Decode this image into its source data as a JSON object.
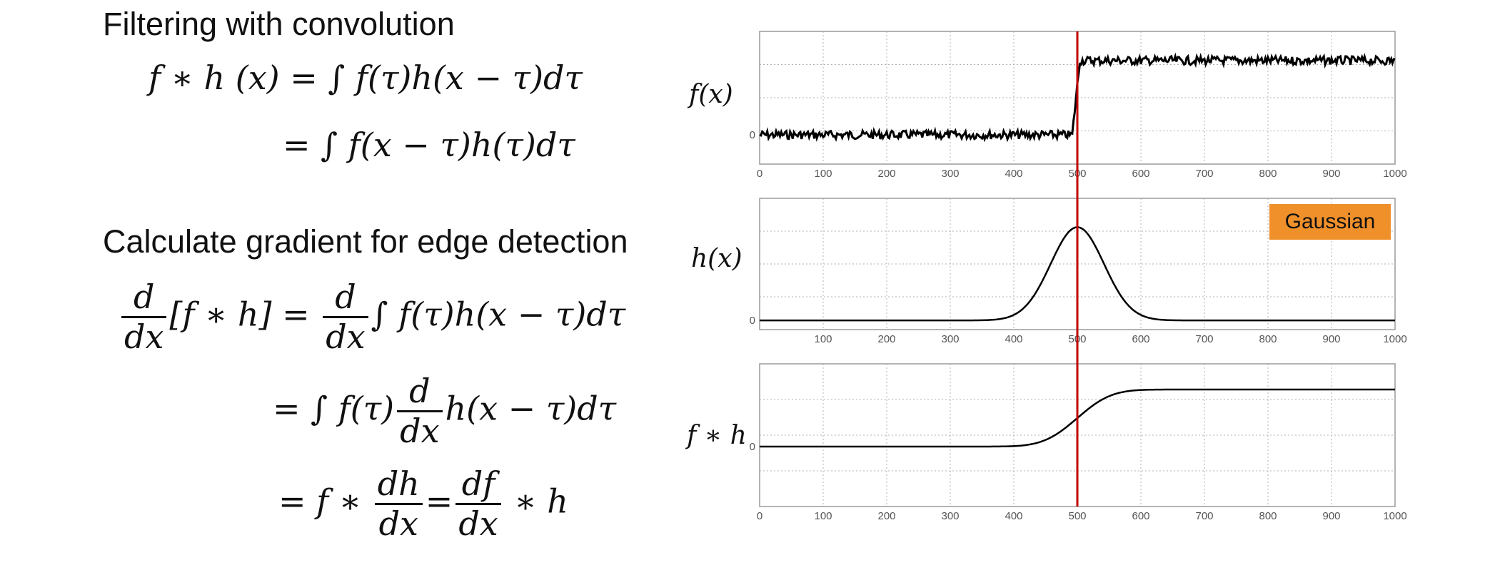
{
  "headings": {
    "conv": "Filtering with convolution",
    "grad": "Calculate gradient for edge detection"
  },
  "conv_eq": {
    "line1_lhs": "f ∗ h (x) = ",
    "integral": "∫",
    "line1_rhs": " f(τ)h(x − τ)dτ",
    "line2_eq": "= ",
    "line2_rhs": " f(x − τ)h(τ)dτ"
  },
  "grad_eq": {
    "d": "d",
    "dx": "dx",
    "bracket": "[f ∗ h] = ",
    "line1_rhs": " f(τ)h(x − τ)dτ",
    "eq": "= ",
    "integral": "∫",
    "f_tau": " f(τ)",
    "line2_tail": "h(x − τ)dτ",
    "f_star": "f ∗ ",
    "dh": "dh",
    "equals": "=",
    "df": "df",
    "star_h": " ∗ h"
  },
  "plot_labels": {
    "f": "f(x)",
    "h": "h(x)",
    "fh": "f ∗ h",
    "gaussian": "Gaussian"
  },
  "chart_data": [
    {
      "type": "line",
      "name": "f(x)",
      "x_ticks": [
        "0",
        "100",
        "200",
        "300",
        "400",
        "500",
        "600",
        "700",
        "800",
        "900",
        "1000"
      ],
      "y_ticks": [
        "0"
      ],
      "xlim": [
        0,
        1000
      ],
      "grid": true,
      "description_values": {
        "low_level": 0,
        "high_level": 2,
        "step_at": 500,
        "noise": "small"
      },
      "x": [
        0,
        490,
        500,
        505,
        1000
      ],
      "y": [
        0,
        0,
        0.6,
        2,
        2
      ]
    },
    {
      "type": "line",
      "name": "h(x)",
      "x_ticks": [
        "100",
        "200",
        "300",
        "400",
        "500",
        "600",
        "700",
        "800",
        "900",
        "1000"
      ],
      "y_ticks": [
        "0"
      ],
      "xlim": [
        0,
        1000
      ],
      "grid": true,
      "gaussian": {
        "mean": 500,
        "sigma": 42,
        "peak": 2.6
      },
      "legend": "Gaussian"
    },
    {
      "type": "line",
      "name": "f ∗ h",
      "x_ticks": [
        "0",
        "100",
        "200",
        "300",
        "400",
        "500",
        "600",
        "700",
        "800",
        "900",
        "1000"
      ],
      "y_ticks": [
        "0"
      ],
      "xlim": [
        0,
        1000
      ],
      "grid": true,
      "sigmoid": {
        "center": 500,
        "low": 0,
        "high": 2.2,
        "sigma": 42
      }
    }
  ],
  "colors": {
    "marker_line": "#c00000",
    "gaussian_badge": "#f0902b",
    "curve": "#000000",
    "grid": "#b0b0b0",
    "frame": "#9a9a9a"
  },
  "marker": {
    "x": 500
  }
}
